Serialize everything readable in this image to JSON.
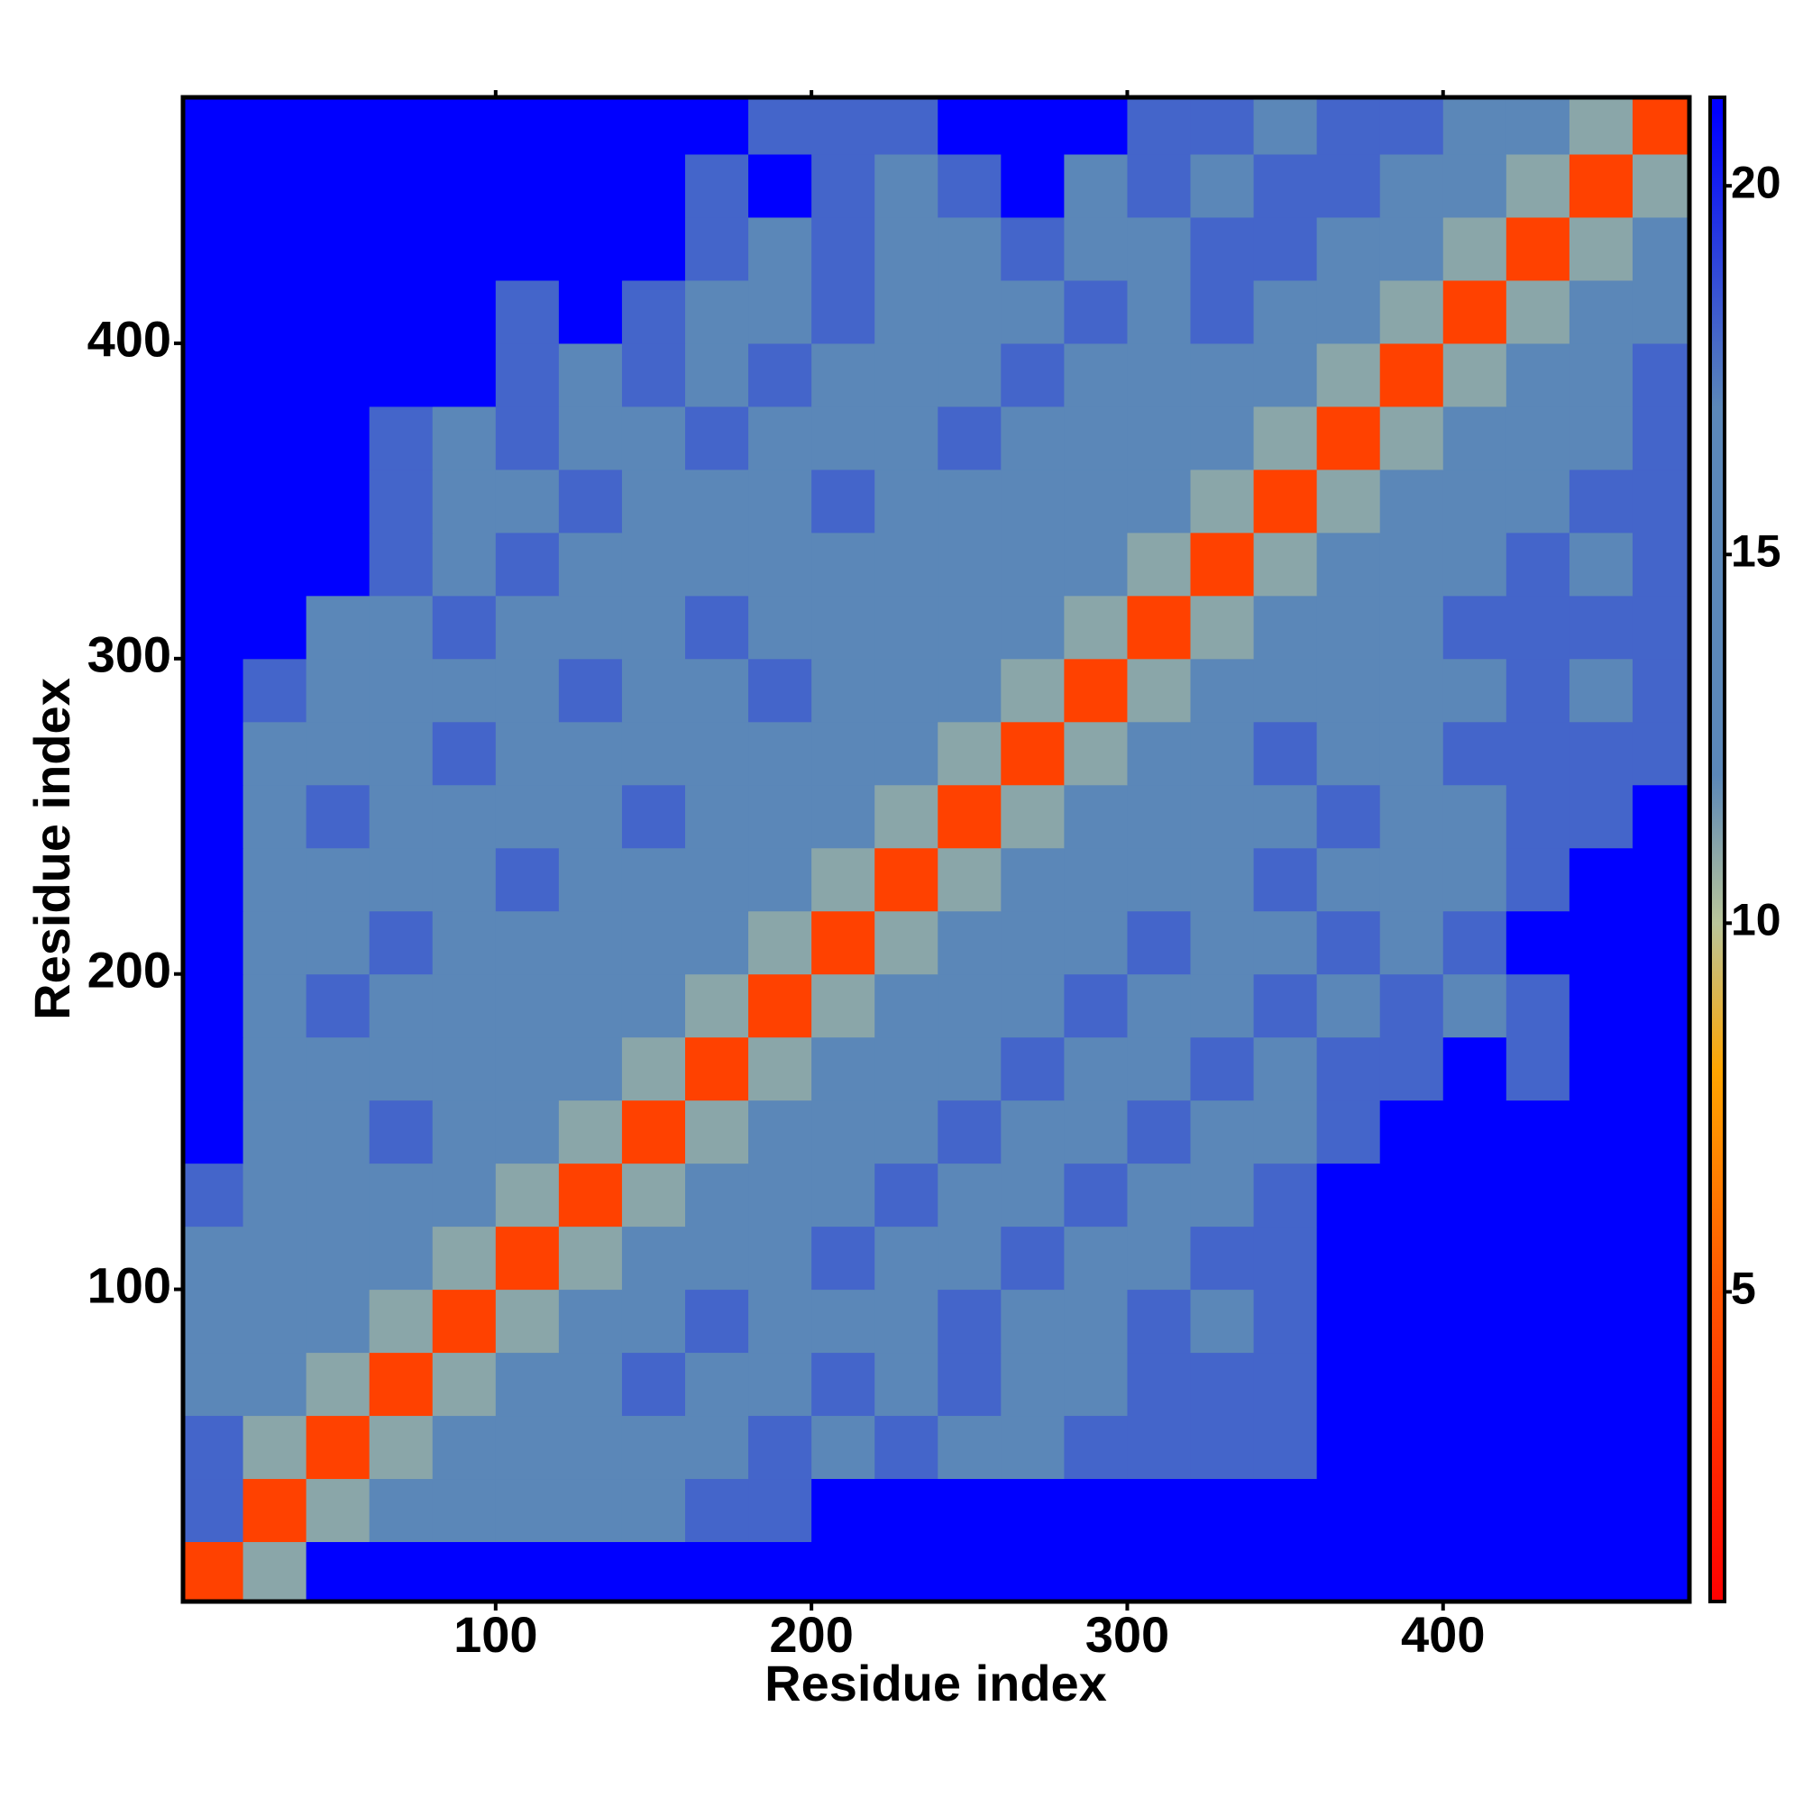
{
  "chart_data": {
    "type": "heatmap",
    "xlabel": "Residue index",
    "ylabel": "Residue index",
    "x": [
      10,
      30,
      50,
      70,
      90,
      110,
      130,
      150,
      170,
      190,
      210,
      230,
      250,
      270,
      290,
      310,
      330,
      350,
      370,
      390,
      410,
      430,
      450,
      470
    ],
    "y": [
      10,
      30,
      50,
      70,
      90,
      110,
      130,
      150,
      170,
      190,
      210,
      230,
      250,
      270,
      290,
      310,
      330,
      350,
      370,
      390,
      410,
      430,
      450,
      470
    ],
    "z": [
      [
        4,
        11,
        21,
        21,
        21,
        21,
        21,
        21,
        21,
        21,
        21,
        21,
        21,
        21,
        21,
        21,
        21,
        21,
        21,
        21,
        21,
        21,
        21,
        21
      ],
      [
        18,
        4,
        11,
        16,
        16,
        16,
        16,
        16,
        18,
        18,
        21,
        21,
        21,
        21,
        21,
        21,
        21,
        21,
        21,
        21,
        21,
        21,
        21,
        21
      ],
      [
        18,
        11,
        4,
        11,
        13,
        16,
        16,
        16,
        16,
        18,
        16,
        18,
        16,
        16,
        18,
        18,
        18,
        18,
        21,
        21,
        21,
        21,
        21,
        21
      ],
      [
        16,
        13,
        11,
        4,
        11,
        13,
        16,
        18,
        16,
        16,
        18,
        16,
        18,
        16,
        16,
        18,
        18,
        18,
        21,
        21,
        21,
        21,
        21,
        21
      ],
      [
        16,
        16,
        13,
        11,
        4,
        11,
        13,
        16,
        18,
        16,
        16,
        16,
        18,
        16,
        16,
        18,
        16,
        18,
        21,
        21,
        21,
        21,
        21,
        21
      ],
      [
        16,
        16,
        16,
        12,
        11,
        4,
        11,
        13,
        16,
        16,
        18,
        16,
        16,
        18,
        16,
        16,
        18,
        18,
        21,
        21,
        21,
        21,
        21,
        21
      ],
      [
        18,
        16,
        16,
        16,
        12,
        11,
        4,
        11,
        13,
        16,
        16,
        18,
        16,
        16,
        18,
        16,
        16,
        18,
        21,
        21,
        21,
        21,
        21,
        21
      ],
      [
        21,
        16,
        16,
        18,
        16,
        13,
        11,
        4,
        11,
        12,
        16,
        16,
        18,
        16,
        16,
        18,
        16,
        16,
        18,
        21,
        21,
        21,
        21,
        21
      ],
      [
        21,
        16,
        16,
        16,
        16,
        16,
        12,
        11,
        4,
        11,
        13,
        16,
        16,
        18,
        16,
        16,
        18,
        16,
        18,
        18,
        21,
        18,
        21,
        21
      ],
      [
        21,
        16,
        18,
        16,
        16,
        16,
        16,
        13,
        11,
        4,
        11,
        12,
        16,
        16,
        18,
        16,
        16,
        18,
        16,
        18,
        16,
        18,
        21,
        21
      ],
      [
        21,
        16,
        16,
        18,
        16,
        16,
        16,
        16,
        12,
        11,
        4,
        11,
        13,
        16,
        16,
        18,
        16,
        16,
        18,
        16,
        18,
        21,
        21,
        21
      ],
      [
        21,
        16,
        16,
        16,
        16,
        18,
        16,
        16,
        16,
        13,
        11,
        4,
        11,
        12,
        16,
        16,
        16,
        18,
        16,
        16,
        16,
        18,
        21,
        21
      ],
      [
        21,
        16,
        18,
        16,
        16,
        16,
        16,
        18,
        16,
        16,
        12,
        11,
        4,
        11,
        13,
        16,
        16,
        16,
        18,
        16,
        16,
        18,
        18,
        21
      ],
      [
        21,
        16,
        16,
        16,
        18,
        16,
        16,
        16,
        16,
        16,
        16,
        13,
        11,
        4,
        11,
        12,
        16,
        18,
        16,
        16,
        18,
        18,
        18,
        18
      ],
      [
        21,
        18,
        16,
        16,
        16,
        16,
        18,
        16,
        16,
        18,
        16,
        16,
        12,
        11,
        4,
        11,
        13,
        16,
        14,
        16,
        16,
        18,
        16,
        18
      ],
      [
        21,
        21,
        16,
        16,
        18,
        16,
        16,
        16,
        18,
        16,
        16,
        16,
        16,
        13,
        11,
        4,
        11,
        12,
        16,
        16,
        18,
        18,
        18,
        18
      ],
      [
        21,
        21,
        21,
        18,
        16,
        18,
        16,
        16,
        16,
        16,
        16,
        16,
        16,
        16,
        12,
        11,
        4,
        11,
        13,
        16,
        16,
        18,
        16,
        18
      ],
      [
        21,
        21,
        21,
        18,
        16,
        16,
        18,
        16,
        16,
        16,
        18,
        16,
        16,
        16,
        16,
        12,
        11,
        4,
        11,
        12,
        16,
        16,
        18,
        18
      ],
      [
        21,
        21,
        21,
        18,
        16,
        18,
        16,
        16,
        18,
        16,
        16,
        16,
        18,
        16,
        16,
        16,
        12,
        11,
        4,
        11,
        13,
        16,
        16,
        18
      ],
      [
        21,
        21,
        21,
        21,
        21,
        18,
        16,
        18,
        16,
        18,
        16,
        16,
        16,
        18,
        16,
        16,
        16,
        13,
        11,
        4,
        11,
        12,
        16,
        18
      ],
      [
        21,
        21,
        21,
        21,
        21,
        18,
        21,
        18,
        16,
        16,
        18,
        16,
        16,
        16,
        18,
        16,
        18,
        16,
        12,
        11,
        4,
        11,
        13,
        16
      ],
      [
        21,
        21,
        21,
        21,
        21,
        21,
        21,
        21,
        18,
        16,
        18,
        16,
        16,
        18,
        16,
        16,
        18,
        18,
        16,
        13,
        11,
        4,
        11,
        13
      ],
      [
        21,
        21,
        21,
        21,
        21,
        21,
        21,
        21,
        18,
        21,
        18,
        16,
        18,
        21,
        16,
        18,
        16,
        18,
        18,
        16,
        13,
        11,
        4,
        11
      ],
      [
        21,
        21,
        21,
        21,
        21,
        21,
        21,
        21,
        21,
        18,
        18,
        18,
        21,
        21,
        21,
        18,
        18,
        16,
        18,
        18,
        16,
        13,
        11,
        4
      ]
    ],
    "xlim": [
      1,
      478
    ],
    "ylim": [
      1,
      478
    ],
    "xticks": [
      100,
      200,
      300,
      400
    ],
    "yticks": [
      100,
      200,
      300,
      400
    ],
    "clim": [
      0.8,
      21.2
    ],
    "cticks": [
      5,
      10,
      15,
      20
    ],
    "colorscale": [
      {
        "value": 0.8,
        "color": "#ff0000"
      },
      {
        "value": 5,
        "color": "#ff5500"
      },
      {
        "value": 8,
        "color": "#ffa500"
      },
      {
        "value": 10,
        "color": "#b9c59a"
      },
      {
        "value": 12,
        "color": "#5b87b8"
      },
      {
        "value": 17,
        "color": "#5b87b8"
      },
      {
        "value": 21,
        "color": "#0000ff"
      },
      {
        "value": 21.2,
        "color": "#0000ff"
      }
    ]
  }
}
